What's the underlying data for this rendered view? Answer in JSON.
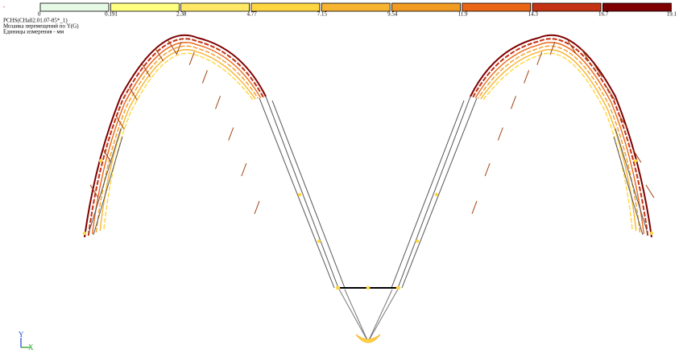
{
  "indicator": "-",
  "header": {
    "lines": [
      "PCHS(CHall2.01.07-85*_1)",
      "Мозаика перемещений по Y(G)",
      "Единицы измерения - мм"
    ]
  },
  "legend": {
    "labels": [
      "0",
      "0.191",
      "2.38",
      "4.77",
      "7.15",
      "9.54",
      "11.9",
      "14.3",
      "16.7",
      "19.1"
    ],
    "colors": [
      "#e6fae6",
      "#ffff80",
      "#ffe866",
      "#ffd640",
      "#f7b431",
      "#f29b22",
      "#ea6614",
      "#c33212",
      "#7e0000"
    ]
  },
  "axes": {
    "y": "Y",
    "x": "X"
  }
}
